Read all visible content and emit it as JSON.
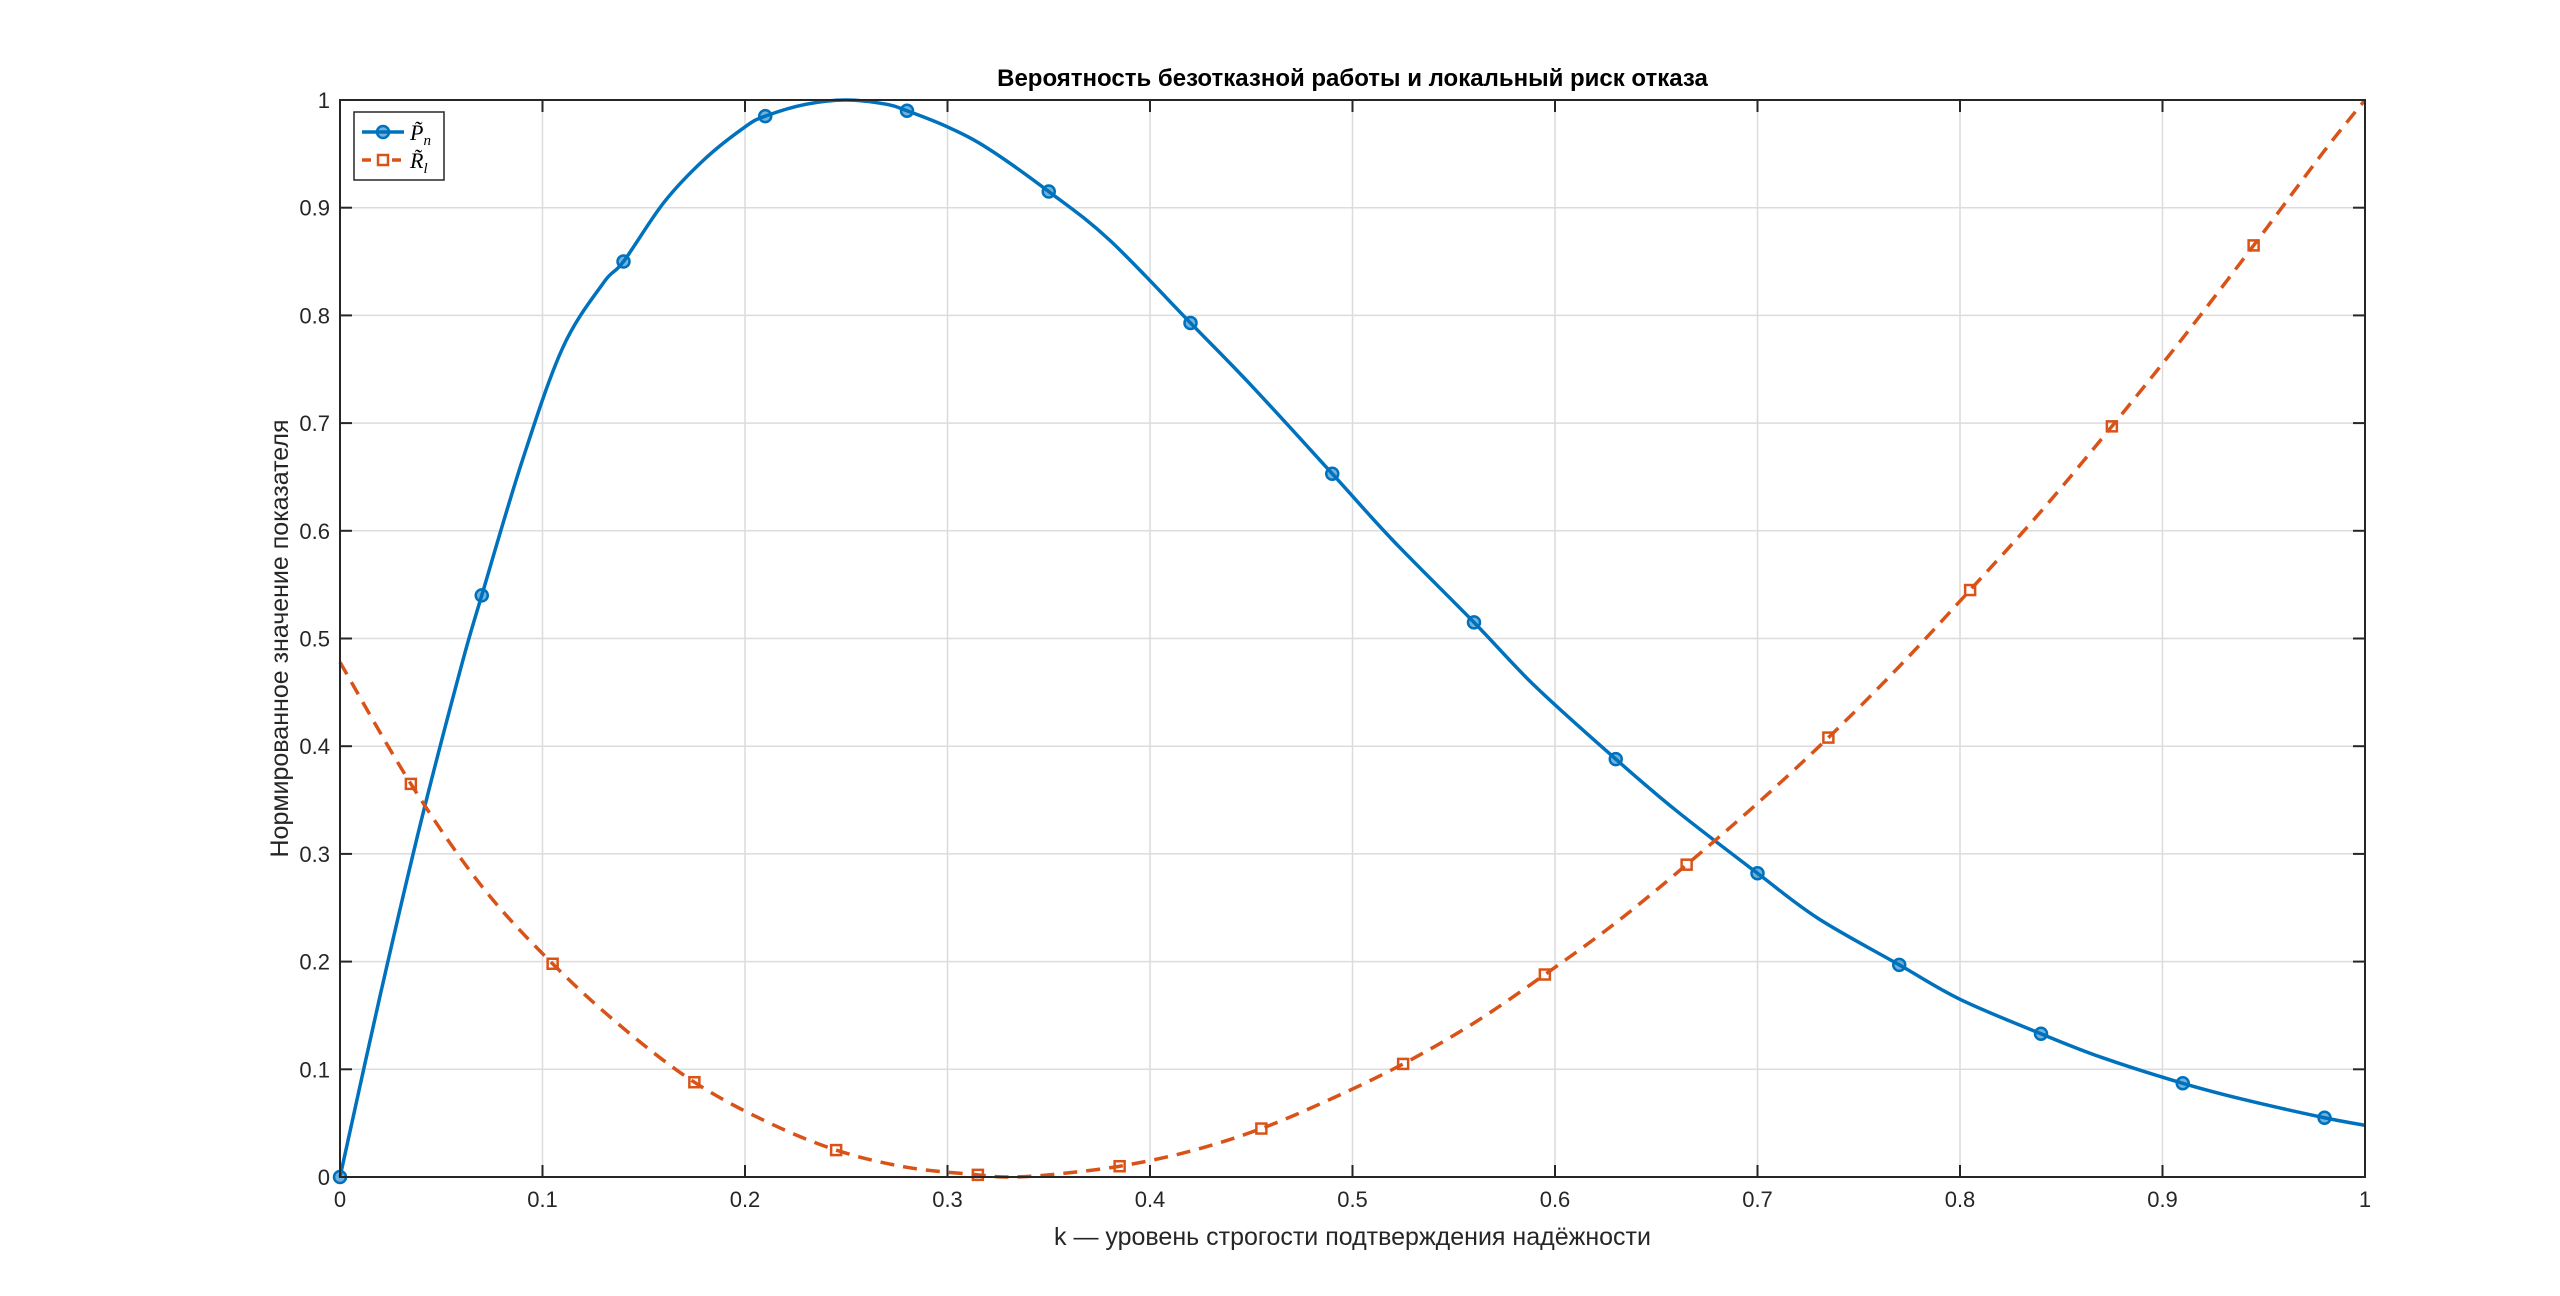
{
  "chart_data": {
    "type": "line",
    "title": "Вероятность безотказной работы и локальный риск отказа",
    "xlabel": "k — уровень строгости подтверждения надёжности",
    "ylabel": "Нормированное значение показателя",
    "xlim": [
      0,
      1
    ],
    "ylim": [
      0,
      1
    ],
    "xticks": [
      0,
      0.1,
      0.2,
      0.3,
      0.4,
      0.5,
      0.6,
      0.7,
      0.8,
      0.9,
      1
    ],
    "yticks": [
      0,
      0.1,
      0.2,
      0.3,
      0.4,
      0.5,
      0.6,
      0.7,
      0.8,
      0.9,
      1
    ],
    "xtick_labels": [
      "0",
      "0.1",
      "0.2",
      "0.3",
      "0.4",
      "0.5",
      "0.6",
      "0.7",
      "0.8",
      "0.9",
      "1"
    ],
    "ytick_labels": [
      "0",
      "0.1",
      "0.2",
      "0.3",
      "0.4",
      "0.5",
      "0.6",
      "0.7",
      "0.8",
      "0.9",
      "1"
    ],
    "grid": true,
    "legend_position": "top-left",
    "series": [
      {
        "name": "P̃n",
        "legend_main": "P̃",
        "legend_sub": "n",
        "color": "#0072BD",
        "line_style": "solid",
        "marker": "circle",
        "markers": {
          "x": [
            0,
            0.07,
            0.14,
            0.21,
            0.28,
            0.35,
            0.42,
            0.49,
            0.56,
            0.63,
            0.7,
            0.77,
            0.84,
            0.91,
            0.98
          ],
          "y": [
            0,
            0.54,
            0.85,
            0.985,
            0.99,
            0.915,
            0.793,
            0.653,
            0.515,
            0.388,
            0.282,
            0.197,
            0.133,
            0.087,
            0.055
          ]
        },
        "curve": {
          "x": [
            0,
            0.02,
            0.04,
            0.06,
            0.07,
            0.09,
            0.11,
            0.13,
            0.14,
            0.16,
            0.18,
            0.2,
            0.21,
            0.23,
            0.25,
            0.27,
            0.28,
            0.3,
            0.32,
            0.35,
            0.38,
            0.42,
            0.45,
            0.49,
            0.52,
            0.56,
            0.59,
            0.63,
            0.66,
            0.7,
            0.73,
            0.77,
            0.8,
            0.84,
            0.87,
            0.91,
            0.94,
            0.98,
            1.0
          ],
          "y": [
            0,
            0.17,
            0.33,
            0.475,
            0.54,
            0.665,
            0.77,
            0.83,
            0.85,
            0.905,
            0.945,
            0.975,
            0.985,
            0.996,
            1.0,
            0.996,
            0.99,
            0.975,
            0.955,
            0.915,
            0.87,
            0.793,
            0.735,
            0.653,
            0.591,
            0.515,
            0.456,
            0.388,
            0.34,
            0.282,
            0.24,
            0.197,
            0.165,
            0.133,
            0.111,
            0.087,
            0.072,
            0.055,
            0.048
          ]
        }
      },
      {
        "name": "R̃l",
        "legend_main": "R̃",
        "legend_sub": "l",
        "color": "#D95319",
        "line_style": "dashed",
        "marker": "square",
        "markers": {
          "x": [
            0.035,
            0.105,
            0.175,
            0.245,
            0.315,
            0.385,
            0.455,
            0.525,
            0.595,
            0.665,
            0.735,
            0.805,
            0.875,
            0.945
          ],
          "y": [
            0.365,
            0.198,
            0.088,
            0.025,
            0.002,
            0.01,
            0.045,
            0.105,
            0.188,
            0.29,
            0.408,
            0.545,
            0.697,
            0.865
          ]
        },
        "curve": {
          "x": [
            0,
            0.035,
            0.07,
            0.105,
            0.14,
            0.175,
            0.21,
            0.245,
            0.28,
            0.315,
            0.33,
            0.35,
            0.385,
            0.42,
            0.455,
            0.49,
            0.525,
            0.56,
            0.595,
            0.63,
            0.665,
            0.7,
            0.735,
            0.77,
            0.805,
            0.84,
            0.875,
            0.91,
            0.945,
            0.98,
            1.0
          ],
          "y": [
            0.478,
            0.365,
            0.27,
            0.198,
            0.138,
            0.088,
            0.052,
            0.025,
            0.009,
            0.002,
            0.0,
            0.002,
            0.01,
            0.024,
            0.045,
            0.073,
            0.105,
            0.143,
            0.188,
            0.236,
            0.29,
            0.347,
            0.408,
            0.474,
            0.545,
            0.618,
            0.697,
            0.779,
            0.865,
            0.953,
            1.0
          ]
        }
      }
    ]
  }
}
